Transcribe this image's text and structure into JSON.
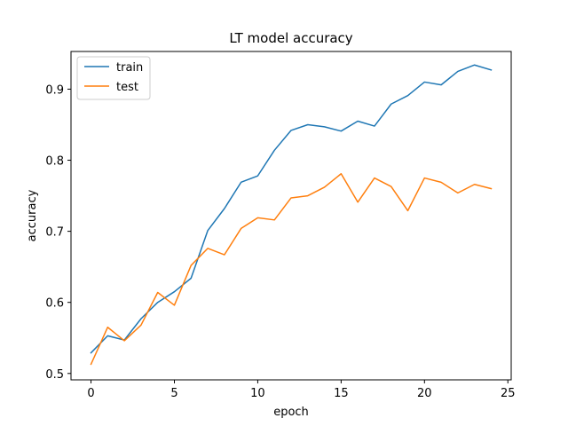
{
  "chart_data": {
    "type": "line",
    "title": "LT model accuracy",
    "xlabel": "epoch",
    "ylabel": "accuracy",
    "xlim": [
      -1.2,
      25.2
    ],
    "ylim": [
      0.491,
      0.953
    ],
    "xticks": [
      0,
      5,
      10,
      15,
      20,
      25
    ],
    "yticks": [
      0.5,
      0.6,
      0.7,
      0.8,
      0.9
    ],
    "ytick_labels": [
      "0.5",
      "0.6",
      "0.7",
      "0.8",
      "0.9"
    ],
    "grid": false,
    "legend_position": "top-left",
    "x": [
      0,
      1,
      2,
      3,
      4,
      5,
      6,
      7,
      8,
      9,
      10,
      11,
      12,
      13,
      14,
      15,
      16,
      17,
      18,
      19,
      20,
      21,
      22,
      23,
      24
    ],
    "series": [
      {
        "name": "train",
        "color": "#1f77b4",
        "values": [
          0.529,
          0.553,
          0.547,
          0.577,
          0.6,
          0.615,
          0.634,
          0.701,
          0.732,
          0.769,
          0.778,
          0.814,
          0.842,
          0.85,
          0.847,
          0.841,
          0.855,
          0.848,
          0.879,
          0.891,
          0.91,
          0.906,
          0.925,
          0.934,
          0.927
        ]
      },
      {
        "name": "test",
        "color": "#ff7f0e",
        "values": [
          0.513,
          0.565,
          0.546,
          0.568,
          0.614,
          0.596,
          0.652,
          0.676,
          0.667,
          0.704,
          0.719,
          0.716,
          0.747,
          0.75,
          0.762,
          0.781,
          0.741,
          0.775,
          0.763,
          0.729,
          0.775,
          0.769,
          0.754,
          0.766,
          0.76
        ]
      }
    ]
  }
}
